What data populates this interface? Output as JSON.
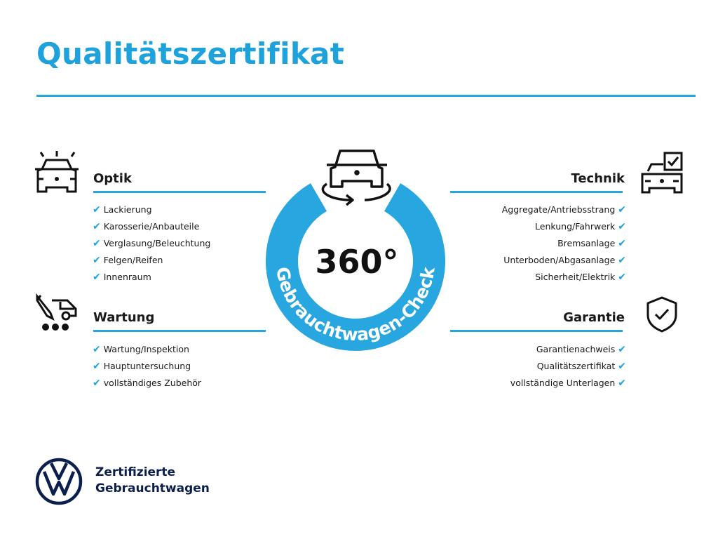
{
  "title": "Qualitätszertifikat",
  "colors": {
    "accent": "#1ea2dc",
    "brand_navy": "#0b1f4d"
  },
  "center": {
    "degrees": "360°",
    "ring_text": "Gebrauchtwagen-Check",
    "icon": "car-rotate-icon"
  },
  "sections": {
    "optik": {
      "title": "Optik",
      "icon": "car-lights-icon",
      "items": [
        "Lackierung",
        "Karosserie/Anbauteile",
        "Verglasung/Beleuchtung",
        "Felgen/Reifen",
        "Innenraum"
      ]
    },
    "wartung": {
      "title": "Wartung",
      "icon": "service-van-icon",
      "items": [
        "Wartung/Inspektion",
        "Hauptuntersuchung",
        "vollständiges Zubehör"
      ]
    },
    "technik": {
      "title": "Technik",
      "icon": "car-checklist-icon",
      "items": [
        "Aggregate/Antriebsstrang",
        "Lenkung/Fahrwerk",
        "Bremsanlage",
        "Unterboden/Abgasanlage",
        "Sicherheit/Elektrik"
      ]
    },
    "garantie": {
      "title": "Garantie",
      "icon": "shield-check-icon",
      "items": [
        "Garantienachweis",
        "Qualitätszertifikat",
        "vollständige Unterlagen"
      ]
    }
  },
  "footer": {
    "line1": "Zertifizierte",
    "line2": "Gebrauchtwagen",
    "logo": "vw-logo"
  },
  "check_glyph": "✔"
}
